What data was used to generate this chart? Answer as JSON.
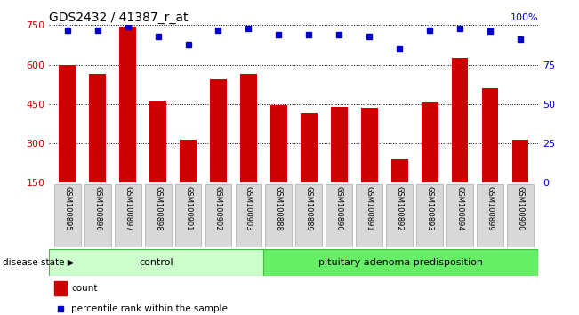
{
  "title": "GDS2432 / 41387_r_at",
  "categories": [
    "GSM100895",
    "GSM100896",
    "GSM100897",
    "GSM100898",
    "GSM100901",
    "GSM100902",
    "GSM100903",
    "GSM100888",
    "GSM100889",
    "GSM100890",
    "GSM100891",
    "GSM100892",
    "GSM100893",
    "GSM100894",
    "GSM100899",
    "GSM100900"
  ],
  "bar_values": [
    600,
    565,
    745,
    460,
    315,
    545,
    565,
    445,
    415,
    440,
    435,
    240,
    455,
    625,
    510,
    315
  ],
  "percentile_values": [
    97,
    97,
    99,
    93,
    88,
    97,
    98,
    94,
    94,
    94,
    93,
    85,
    97,
    98,
    96,
    91
  ],
  "bar_color": "#cc0000",
  "dot_color": "#0000cc",
  "ylim_left": [
    150,
    750
  ],
  "ylim_right": [
    0,
    100
  ],
  "yticks_left": [
    150,
    300,
    450,
    600,
    750
  ],
  "yticks_right": [
    0,
    25,
    50,
    75,
    100
  ],
  "ylabel_left_color": "#cc0000",
  "ylabel_right_color": "#0000cc",
  "grid_color": "#000000",
  "control_samples": 7,
  "control_label": "control",
  "disease_label": "pituitary adenoma predisposition",
  "disease_state_label": "disease state",
  "legend_bar_label": "count",
  "legend_dot_label": "percentile rank within the sample",
  "bg_color": "#ffffff",
  "control_color": "#ccffcc",
  "disease_color": "#66ee66",
  "bar_width": 0.55,
  "title_fontsize": 10,
  "tick_fontsize": 8,
  "xtick_fontsize": 6,
  "legend_fontsize": 7.5,
  "disease_fontsize": 8
}
